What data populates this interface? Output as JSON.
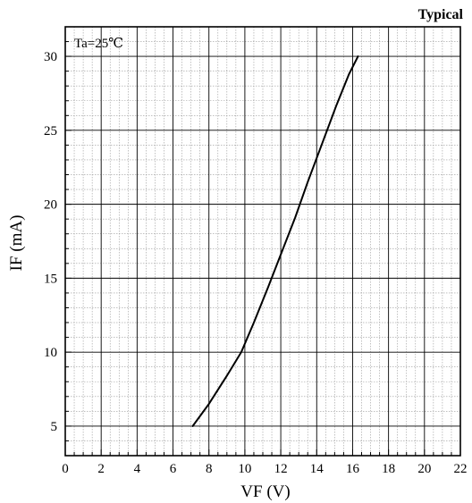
{
  "chart_data": {
    "type": "line",
    "corner_label": "Typical",
    "annotation": "Ta=25℃",
    "xlabel": "VF  (V)",
    "ylabel": "IF  (mA)",
    "xlim": [
      0,
      22
    ],
    "ylim": [
      3,
      32
    ],
    "x_ticks": [
      0,
      2,
      4,
      6,
      8,
      10,
      12,
      14,
      16,
      18,
      20,
      22
    ],
    "y_ticks": [
      5,
      10,
      15,
      20,
      25,
      30
    ],
    "grid": true,
    "series": [
      {
        "x": [
          7.1,
          8.0,
          9.0,
          9.8,
          10.5,
          11.3,
          12.0,
          12.8,
          13.5,
          14.3,
          15.1,
          15.8,
          16.3
        ],
        "y": [
          5.0,
          6.5,
          8.4,
          10.0,
          12.0,
          14.4,
          16.6,
          19.1,
          21.5,
          24.1,
          26.7,
          28.8,
          30.0
        ]
      }
    ]
  }
}
